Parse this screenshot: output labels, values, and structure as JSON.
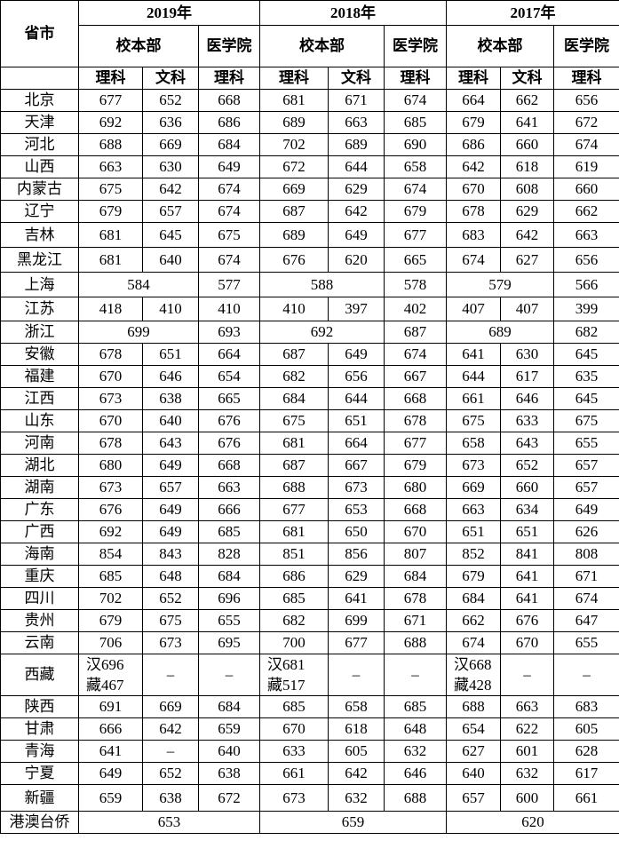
{
  "header": {
    "province_label": "省市",
    "years": [
      "2019年",
      "2018年",
      "2017年"
    ],
    "campus_main": "校本部",
    "campus_medical": "医学院",
    "science": "理科",
    "liberal_arts": "文科"
  },
  "rows": [
    {
      "province": "北京",
      "values": [
        "677",
        "652",
        "668",
        "681",
        "671",
        "674",
        "664",
        "662",
        "656"
      ]
    },
    {
      "province": "天津",
      "values": [
        "692",
        "636",
        "686",
        "689",
        "663",
        "685",
        "679",
        "641",
        "672"
      ]
    },
    {
      "province": "河北",
      "values": [
        "688",
        "669",
        "684",
        "702",
        "689",
        "690",
        "686",
        "660",
        "674"
      ]
    },
    {
      "province": "山西",
      "values": [
        "663",
        "630",
        "649",
        "672",
        "644",
        "658",
        "642",
        "618",
        "619"
      ]
    },
    {
      "province": "内蒙古",
      "values": [
        "675",
        "642",
        "674",
        "669",
        "629",
        "674",
        "670",
        "608",
        "660"
      ]
    },
    {
      "province": "辽宁",
      "values": [
        "679",
        "657",
        "674",
        "687",
        "642",
        "679",
        "678",
        "629",
        "662"
      ]
    },
    {
      "province": "吉林",
      "values": [
        "681",
        "645",
        "675",
        "689",
        "649",
        "677",
        "683",
        "642",
        "663"
      ]
    },
    {
      "province": "黑龙江",
      "values": [
        "681",
        "640",
        "674",
        "676",
        "620",
        "665",
        "674",
        "627",
        "656"
      ]
    },
    {
      "province": "上海",
      "values": [
        "584",
        null,
        "577",
        "588",
        null,
        "578",
        "579",
        null,
        "566"
      ]
    },
    {
      "province": "江苏",
      "values": [
        "418",
        "410",
        "410",
        "410",
        "397",
        "402",
        "407",
        "407",
        "399"
      ]
    },
    {
      "province": "浙江",
      "values": [
        "699",
        null,
        "693",
        "692",
        null,
        "687",
        "689",
        null,
        "682"
      ]
    },
    {
      "province": "安徽",
      "values": [
        "678",
        "651",
        "664",
        "687",
        "649",
        "674",
        "641",
        "630",
        "645"
      ]
    },
    {
      "province": "福建",
      "values": [
        "670",
        "646",
        "654",
        "682",
        "656",
        "667",
        "644",
        "617",
        "635"
      ]
    },
    {
      "province": "江西",
      "values": [
        "673",
        "638",
        "665",
        "684",
        "644",
        "668",
        "661",
        "646",
        "645"
      ]
    },
    {
      "province": "山东",
      "values": [
        "670",
        "640",
        "676",
        "675",
        "651",
        "678",
        "675",
        "633",
        "675"
      ]
    },
    {
      "province": "河南",
      "values": [
        "678",
        "643",
        "676",
        "681",
        "664",
        "677",
        "658",
        "643",
        "655"
      ]
    },
    {
      "province": "湖北",
      "values": [
        "680",
        "649",
        "668",
        "687",
        "667",
        "679",
        "673",
        "652",
        "657"
      ]
    },
    {
      "province": "湖南",
      "values": [
        "673",
        "657",
        "663",
        "688",
        "673",
        "680",
        "669",
        "660",
        "657"
      ]
    },
    {
      "province": "广东",
      "values": [
        "676",
        "649",
        "666",
        "677",
        "653",
        "668",
        "663",
        "634",
        "649"
      ]
    },
    {
      "province": "广西",
      "values": [
        "692",
        "649",
        "685",
        "681",
        "650",
        "670",
        "651",
        "651",
        "626"
      ]
    },
    {
      "province": "海南",
      "values": [
        "854",
        "843",
        "828",
        "851",
        "856",
        "807",
        "852",
        "841",
        "808"
      ]
    },
    {
      "province": "重庆",
      "values": [
        "685",
        "648",
        "684",
        "686",
        "629",
        "684",
        "679",
        "641",
        "671"
      ]
    },
    {
      "province": "四川",
      "values": [
        "702",
        "652",
        "696",
        "685",
        "641",
        "678",
        "684",
        "641",
        "674"
      ]
    },
    {
      "province": "贵州",
      "values": [
        "679",
        "675",
        "655",
        "682",
        "699",
        "671",
        "662",
        "676",
        "647"
      ]
    },
    {
      "province": "云南",
      "values": [
        "706",
        "673",
        "695",
        "700",
        "677",
        "688",
        "674",
        "670",
        "655"
      ]
    },
    {
      "province": "西藏",
      "values": [
        "汉696 藏467",
        "–",
        "–",
        "汉681 藏517",
        "–",
        "–",
        "汉668 藏428",
        "–",
        "–"
      ]
    },
    {
      "province": "陕西",
      "values": [
        "691",
        "669",
        "684",
        "685",
        "658",
        "685",
        "688",
        "663",
        "683"
      ]
    },
    {
      "province": "甘肃",
      "values": [
        "666",
        "642",
        "659",
        "670",
        "618",
        "648",
        "654",
        "622",
        "605"
      ]
    },
    {
      "province": "青海",
      "values": [
        "641",
        "–",
        "640",
        "633",
        "605",
        "632",
        "627",
        "601",
        "628"
      ]
    },
    {
      "province": "宁夏",
      "values": [
        "649",
        "652",
        "638",
        "661",
        "642",
        "646",
        "640",
        "632",
        "617"
      ]
    },
    {
      "province": "新疆",
      "values": [
        "659",
        "638",
        "672",
        "673",
        "632",
        "688",
        "657",
        "600",
        "661"
      ]
    },
    {
      "province": "港澳台侨",
      "values": [
        "653",
        null,
        null,
        "659",
        null,
        null,
        "620",
        null,
        null
      ]
    }
  ]
}
